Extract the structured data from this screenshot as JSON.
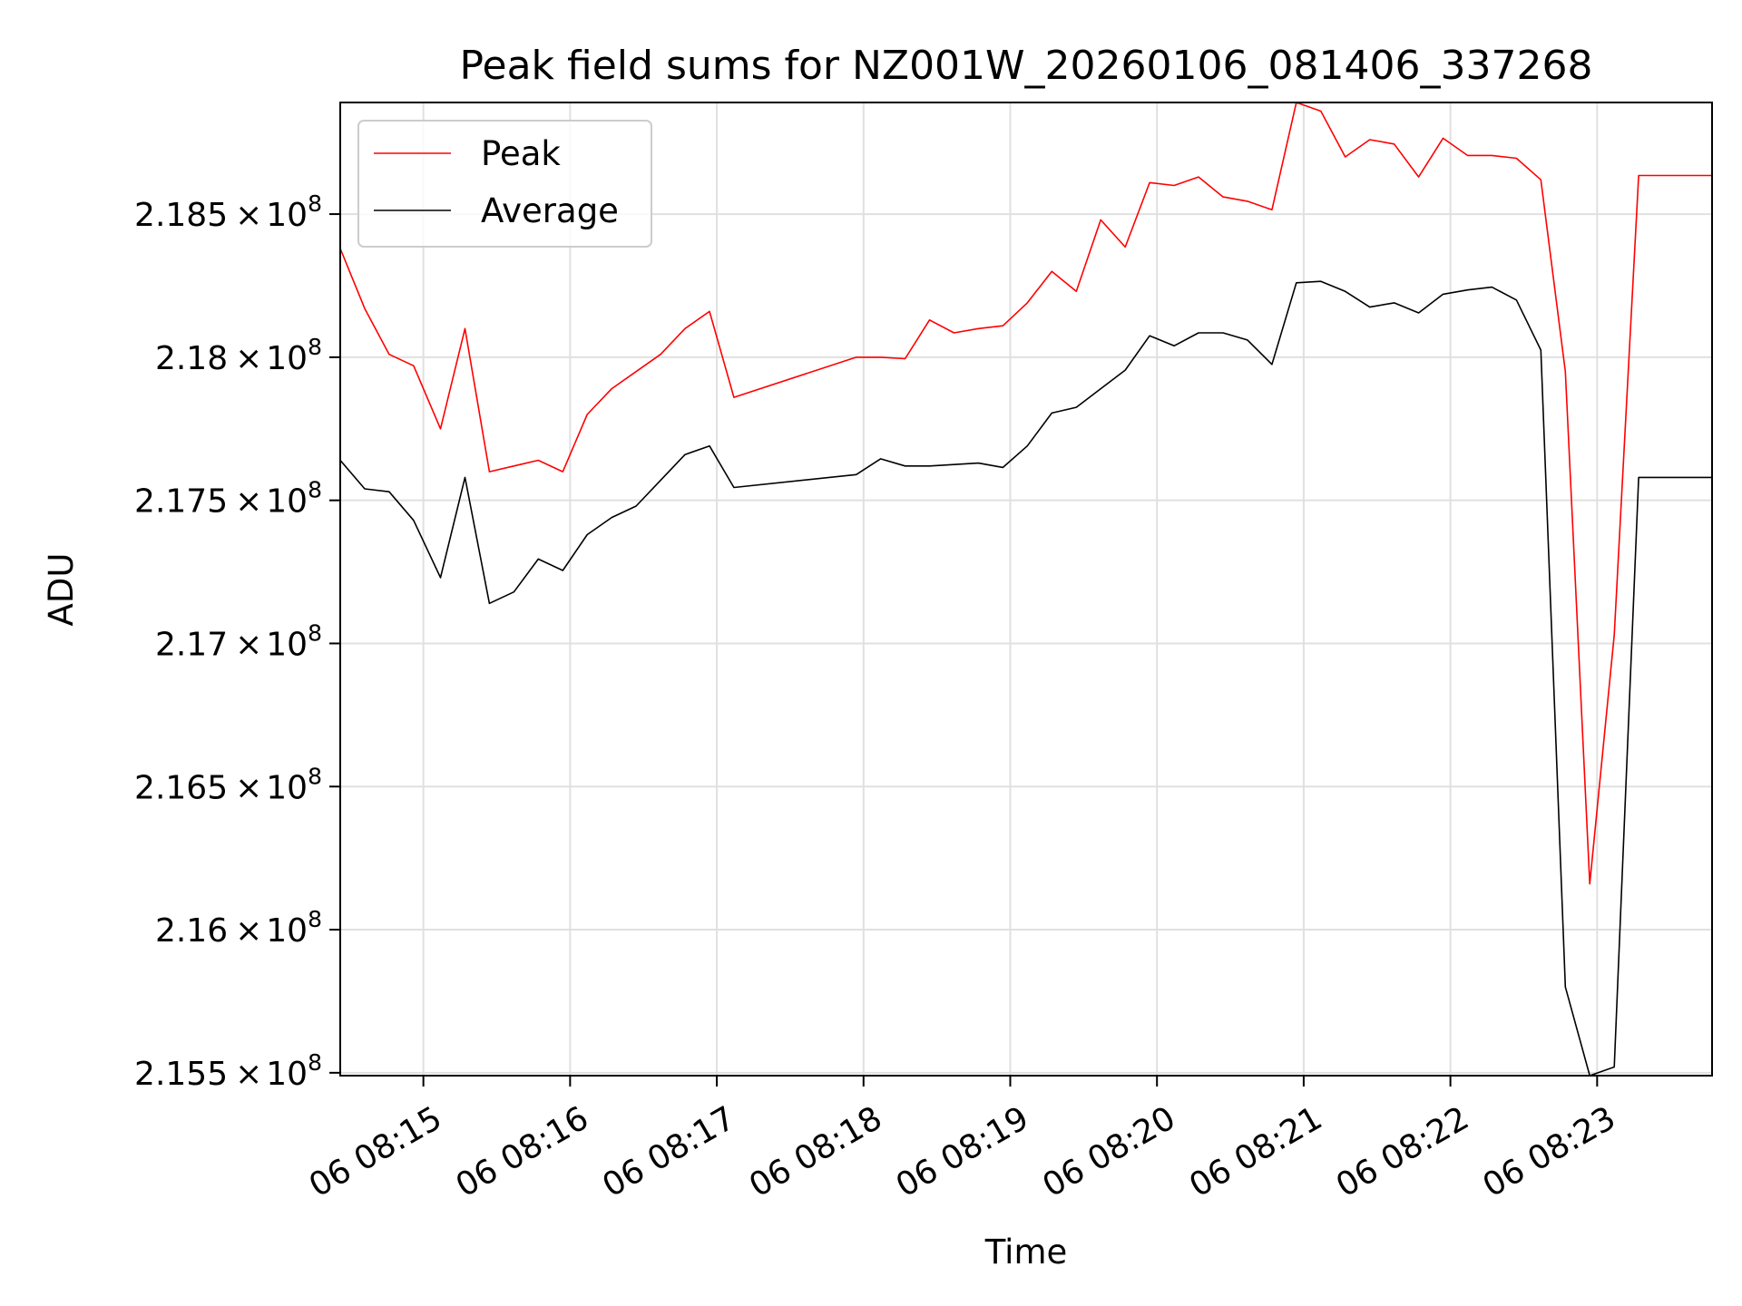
{
  "chart_data": {
    "type": "line",
    "title": "Peak field sums for NZ001W_20260106_081406_337268",
    "xlabel": "Time",
    "ylabel": "ADU",
    "xlim": [
      "06 08:14:26",
      "06 08:23:47"
    ],
    "ylim": [
      215490000,
      218890000
    ],
    "grid": true,
    "legend_position": "top-left",
    "x_ticks": [
      {
        "t": "06 08:15:00",
        "label": "06 08:15"
      },
      {
        "t": "06 08:16:00",
        "label": "06 08:16"
      },
      {
        "t": "06 08:17:00",
        "label": "06 08:17"
      },
      {
        "t": "06 08:18:00",
        "label": "06 08:18"
      },
      {
        "t": "06 08:19:00",
        "label": "06 08:19"
      },
      {
        "t": "06 08:20:00",
        "label": "06 08:20"
      },
      {
        "t": "06 08:21:00",
        "label": "06 08:21"
      },
      {
        "t": "06 08:22:00",
        "label": "06 08:22"
      },
      {
        "t": "06 08:23:00",
        "label": "06 08:23"
      }
    ],
    "y_ticks": [
      {
        "value": 215500000,
        "mantissa": "2.155",
        "times": "×",
        "base": "10",
        "exponent": "8"
      },
      {
        "value": 216000000,
        "mantissa": "2.16",
        "times": "×",
        "base": "10",
        "exponent": "8"
      },
      {
        "value": 216500000,
        "mantissa": "2.165",
        "times": "×",
        "base": "10",
        "exponent": "8"
      },
      {
        "value": 217000000,
        "mantissa": "2.17",
        "times": "×",
        "base": "10",
        "exponent": "8"
      },
      {
        "value": 217500000,
        "mantissa": "2.175",
        "times": "×",
        "base": "10",
        "exponent": "8"
      },
      {
        "value": 218000000,
        "mantissa": "2.18",
        "times": "×",
        "base": "10",
        "exponent": "8"
      },
      {
        "value": 218500000,
        "mantissa": "2.185",
        "times": "×",
        "base": "10",
        "exponent": "8"
      }
    ],
    "x": [
      "06 08:14:26",
      "06 08:14:36",
      "06 08:14:46",
      "06 08:14:56",
      "06 08:15:07",
      "06 08:15:17",
      "06 08:15:27",
      "06 08:15:37",
      "06 08:15:47",
      "06 08:15:57",
      "06 08:16:07",
      "06 08:16:17",
      "06 08:16:27",
      "06 08:16:37",
      "06 08:16:47",
      "06 08:16:57",
      "06 08:17:07",
      "06 08:17:57",
      "06 08:18:07",
      "06 08:18:17",
      "06 08:18:27",
      "06 08:18:37",
      "06 08:18:47",
      "06 08:18:57",
      "06 08:19:07",
      "06 08:19:17",
      "06 08:19:27",
      "06 08:19:37",
      "06 08:19:47",
      "06 08:19:57",
      "06 08:20:07",
      "06 08:20:17",
      "06 08:20:27",
      "06 08:20:37",
      "06 08:20:47",
      "06 08:20:57",
      "06 08:21:07",
      "06 08:21:17",
      "06 08:21:27",
      "06 08:21:37",
      "06 08:21:47",
      "06 08:21:57",
      "06 08:22:07",
      "06 08:22:17",
      "06 08:22:27",
      "06 08:22:37",
      "06 08:22:47",
      "06 08:22:57",
      "06 08:23:07",
      "06 08:23:17",
      "06 08:23:47"
    ],
    "series": [
      {
        "name": "Peak",
        "color": "#ff0000",
        "values": [
          218380000,
          218170000,
          218010000,
          217970000,
          217750000,
          218100000,
          217600000,
          217620000,
          217640000,
          217600000,
          217800000,
          217890000,
          217950000,
          218010000,
          218100000,
          218160000,
          217860000,
          218000000,
          218000000,
          217995000,
          218130000,
          218085000,
          218100000,
          218110000,
          218190000,
          218300000,
          218230000,
          218480000,
          218385000,
          218610000,
          218600000,
          218630000,
          218560000,
          218545000,
          218515000,
          218890000,
          218860000,
          218700000,
          218760000,
          218745000,
          218630000,
          218765000,
          218705000,
          218705000,
          218695000,
          218620000,
          217950000,
          216160000,
          217030000,
          218635000,
          218635000
        ]
      },
      {
        "name": "Average",
        "color": "#000000",
        "values": [
          217640000,
          217540000,
          217530000,
          217430000,
          217230000,
          217580000,
          217140000,
          217180000,
          217295000,
          217255000,
          217380000,
          217440000,
          217480000,
          217570000,
          217660000,
          217690000,
          217545000,
          217590000,
          217645000,
          217620000,
          217620000,
          217625000,
          217630000,
          217615000,
          217690000,
          217805000,
          217825000,
          217890000,
          217955000,
          218075000,
          218040000,
          218085000,
          218085000,
          218060000,
          217975000,
          218260000,
          218265000,
          218230000,
          218175000,
          218190000,
          218155000,
          218220000,
          218235000,
          218245000,
          218200000,
          218025000,
          215800000,
          215490000,
          215520000,
          217580000,
          217580000
        ]
      }
    ]
  }
}
